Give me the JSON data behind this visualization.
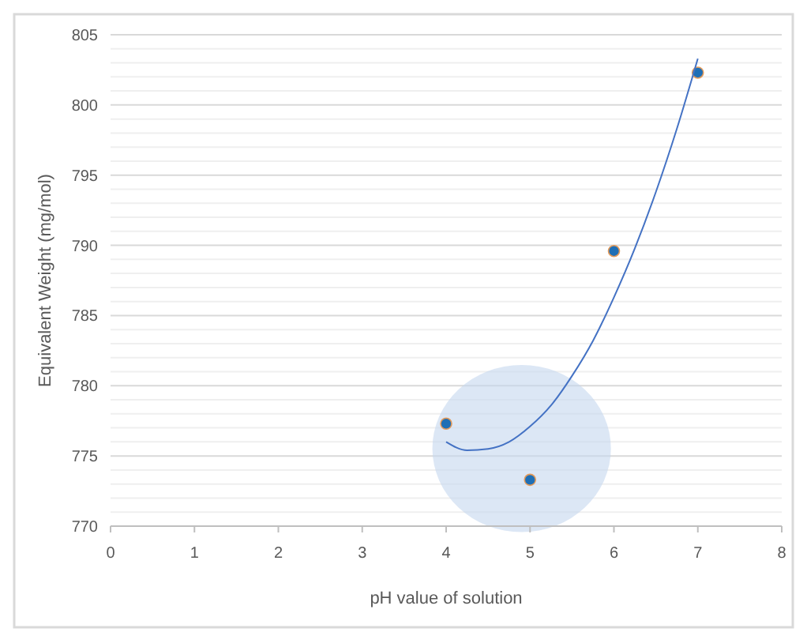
{
  "chart_data": {
    "type": "scatter",
    "xlabel": "pH value of solution",
    "ylabel": "Equivalent Weight (mg/mol)",
    "series": [
      {
        "color": "#1f6fb5",
        "marker": "circle",
        "x": [
          4,
          5,
          6,
          7
        ],
        "values": [
          777.3,
          773.3,
          789.6,
          802.3
        ]
      },
      {
        "type": "line",
        "color": "#4472c4",
        "marker": "none",
        "line_style": "solid",
        "x": [
          4,
          4.25,
          4.5,
          4.75,
          5,
          5.25,
          5.5,
          5.75,
          6,
          6.25,
          6.5,
          6.75,
          7
        ],
        "values": [
          776.0,
          775.4,
          775.5,
          776.0,
          777.1,
          778.6,
          780.7,
          783.2,
          786.3,
          789.8,
          793.8,
          798.3,
          803.3
        ]
      }
    ],
    "xlim": [
      0,
      8
    ],
    "xticks": [
      0,
      1,
      2,
      3,
      4,
      5,
      6,
      7,
      8
    ],
    "ylim": [
      770,
      805
    ],
    "yticks": [
      770,
      {
        "value": 771,
        "label": null
      },
      {
        "value": 772,
        "label": null
      },
      {
        "value": 773,
        "label": null
      },
      {
        "value": 774,
        "label": null
      },
      775,
      {
        "value": 776,
        "label": null
      },
      {
        "value": 777,
        "label": null
      },
      {
        "value": 778,
        "label": null
      },
      {
        "value": 779,
        "label": null
      },
      780,
      {
        "value": 781,
        "label": null
      },
      {
        "value": 782,
        "label": null
      },
      {
        "value": 783,
        "label": null
      },
      {
        "value": 784,
        "label": null
      },
      785,
      {
        "value": 786,
        "label": null
      },
      {
        "value": 787,
        "label": null
      },
      {
        "value": 788,
        "label": null
      },
      {
        "value": 789,
        "label": null
      },
      790,
      {
        "value": 791,
        "label": null
      },
      {
        "value": 792,
        "label": null
      },
      {
        "value": 793,
        "label": null
      },
      {
        "value": 794,
        "label": null
      },
      795,
      {
        "value": 796,
        "label": null
      },
      {
        "value": 797,
        "label": null
      },
      {
        "value": 798,
        "label": null
      },
      {
        "value": 799,
        "label": null
      },
      800,
      {
        "value": 801,
        "label": null
      },
      {
        "value": 802,
        "label": null
      },
      {
        "value": 803,
        "label": null
      },
      {
        "value": 804,
        "label": null
      },
      805
    ],
    "grid": "y"
  }
}
